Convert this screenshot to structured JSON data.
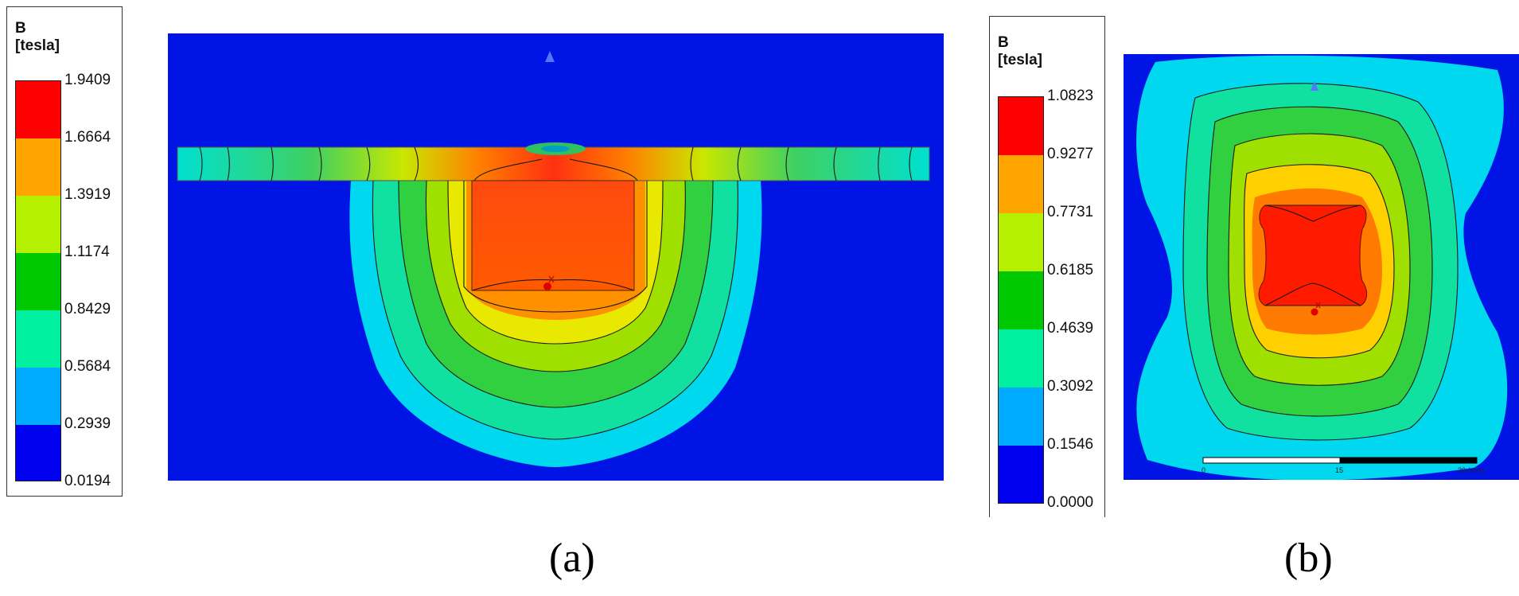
{
  "legend_a": {
    "title_line1": "B",
    "title_line2": "[tesla]",
    "ticks": [
      "1.9409",
      "1.6664",
      "1.3919",
      "1.1174",
      "0.8429",
      "0.5684",
      "0.2939",
      "0.0194"
    ],
    "colors": [
      "#ff0000",
      "#ffa500",
      "#b5f000",
      "#00c800",
      "#00f0a0",
      "#00aaff",
      "#0000ee"
    ]
  },
  "legend_b": {
    "title_line1": "B",
    "title_line2": "[tesla]",
    "ticks": [
      "1.0823",
      "0.9277",
      "0.7731",
      "0.6185",
      "0.4639",
      "0.3092",
      "0.1546",
      "0.0000"
    ],
    "colors": [
      "#ff0000",
      "#ffa500",
      "#b5f000",
      "#00c800",
      "#00f0a0",
      "#00aaff",
      "#0000ee"
    ]
  },
  "plot_b": {
    "scalebar_labels": [
      "0",
      "15",
      "30 (mm)"
    ]
  },
  "captions": {
    "a": "(a)",
    "b": "(b)"
  },
  "colors": {
    "background_field": "#0014e6",
    "contour_line": "#1a1a1a"
  }
}
